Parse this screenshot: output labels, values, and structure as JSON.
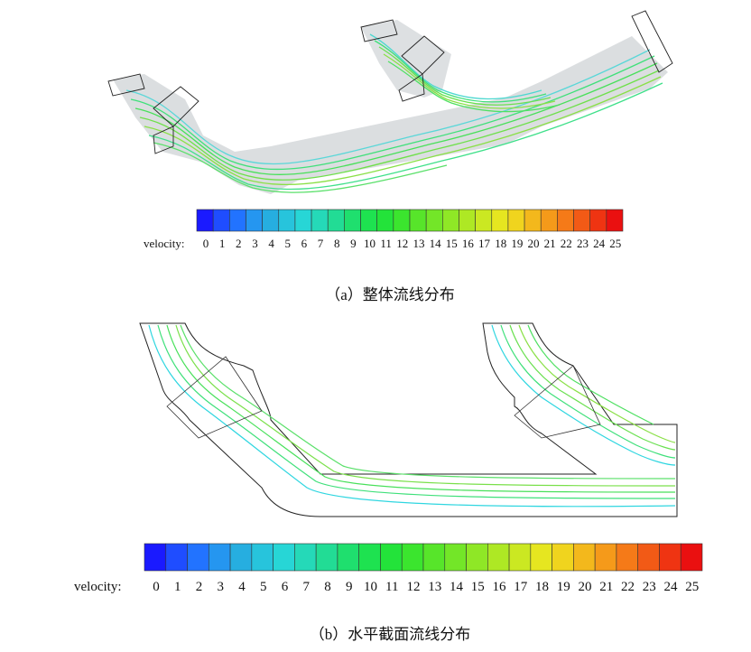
{
  "panel_a": {
    "caption": "（a）整体流线分布",
    "legend_label": "velocity:",
    "ticks": [
      "0",
      "1",
      "2",
      "3",
      "4",
      "5",
      "6",
      "7",
      "8",
      "9",
      "10",
      "11",
      "12",
      "13",
      "14",
      "15",
      "16",
      "17",
      "18",
      "19",
      "20",
      "21",
      "22",
      "23",
      "24",
      "25"
    ]
  },
  "panel_b": {
    "caption": "（b）水平截面流线分布",
    "legend_label": "velocity:",
    "ticks": [
      "0",
      "1",
      "2",
      "3",
      "4",
      "5",
      "6",
      "7",
      "8",
      "9",
      "10",
      "11",
      "12",
      "13",
      "14",
      "15",
      "16",
      "17",
      "18",
      "19",
      "20",
      "21",
      "22",
      "23",
      "24",
      "25"
    ]
  },
  "colormap": [
    "#1a1aff",
    "#1f4dff",
    "#2273ff",
    "#2596f0",
    "#26aee0",
    "#27c4dc",
    "#27d6d6",
    "#25d9b8",
    "#22dc95",
    "#1fdf6e",
    "#1ee250",
    "#23e33a",
    "#3be52e",
    "#57e52a",
    "#73e628",
    "#8fe726",
    "#aee824",
    "#cbe822",
    "#e6e620",
    "#f0d41e",
    "#f3b81c",
    "#f59a1a",
    "#f57a18",
    "#f25a16",
    "#ef3412",
    "#ea1010"
  ]
}
